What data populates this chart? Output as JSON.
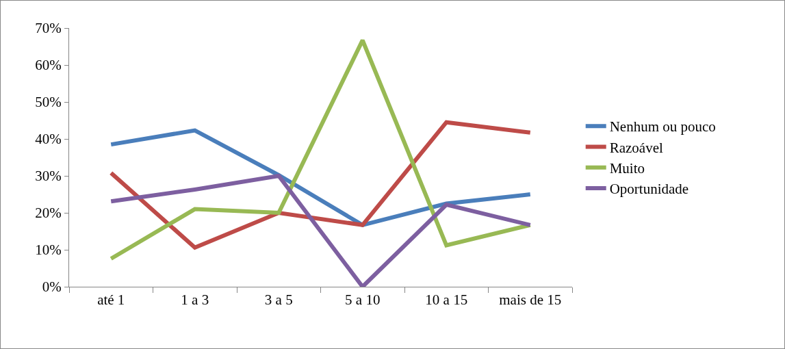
{
  "chart_data": {
    "type": "line",
    "categories": [
      "até 1",
      "1 a 3",
      "3 a 5",
      "5 a 10",
      "10 a 15",
      "mais de 15"
    ],
    "series": [
      {
        "name": "Nenhum ou pouco",
        "color": "#4a7ebb",
        "values": [
          38.5,
          42.3,
          30.2,
          16.7,
          22.5,
          25
        ]
      },
      {
        "name": "Razoável",
        "color": "#be4b48",
        "values": [
          30.8,
          10.6,
          20,
          16.7,
          44.5,
          41.7
        ]
      },
      {
        "name": "Muito",
        "color": "#98b954",
        "values": [
          7.6,
          21,
          20,
          66.7,
          11.2,
          16.7
        ]
      },
      {
        "name": "Oportunidade",
        "color": "#7d5fa0",
        "values": [
          23.1,
          26.3,
          30,
          0,
          22.2,
          16.7
        ]
      }
    ],
    "ylim": [
      0,
      70
    ],
    "yticks": [
      {
        "value": 0,
        "label": "0%"
      },
      {
        "value": 10,
        "label": "10%"
      },
      {
        "value": 20,
        "label": "20%"
      },
      {
        "value": 30,
        "label": "30%"
      },
      {
        "value": 40,
        "label": "40%"
      },
      {
        "value": 50,
        "label": "50%"
      },
      {
        "value": 60,
        "label": "60%"
      },
      {
        "value": 70,
        "label": "70%"
      }
    ],
    "grid": false,
    "legend": "right",
    "marker": "none",
    "line_style": "solid"
  }
}
